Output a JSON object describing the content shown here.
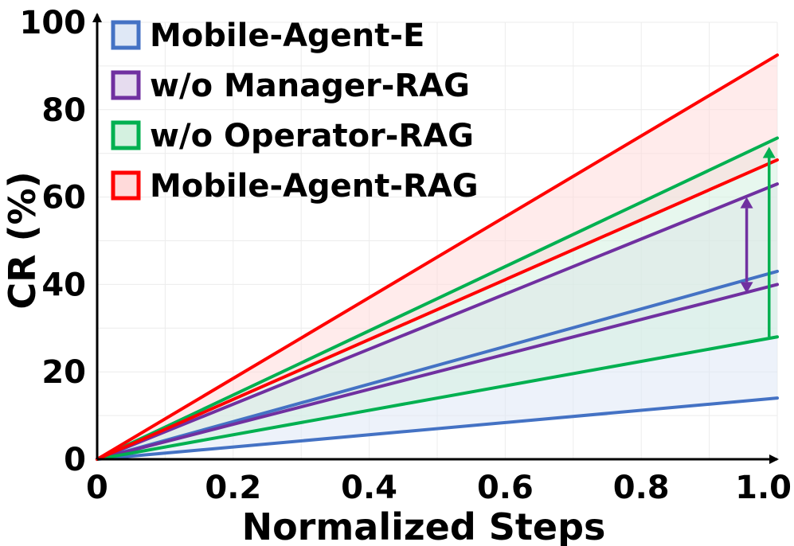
{
  "chart_data": {
    "type": "area",
    "title": "",
    "xlabel": "Normalized Steps",
    "ylabel": "CR (%)",
    "xlim": [
      0,
      1.0
    ],
    "ylim": [
      0,
      100
    ],
    "xticks": [
      {
        "value": 0,
        "label": "0"
      },
      {
        "value": 0.2,
        "label": "0.2"
      },
      {
        "value": 0.4,
        "label": "0.4"
      },
      {
        "value": 0.6,
        "label": "0.6"
      },
      {
        "value": 0.8,
        "label": "0.8"
      },
      {
        "value": 1.0,
        "label": "1.0"
      }
    ],
    "yticks": [
      {
        "value": 0,
        "label": "0"
      },
      {
        "value": 20,
        "label": "20"
      },
      {
        "value": 40,
        "label": "40"
      },
      {
        "value": 60,
        "label": "60"
      },
      {
        "value": 80,
        "label": "80"
      },
      {
        "value": 100,
        "label": "100"
      }
    ],
    "grid": true,
    "legend_position": "top-left",
    "series": [
      {
        "name": "Mobile-Agent-E",
        "color": "#4472C4",
        "fill": "#dfe8f6",
        "lower_end": 14,
        "upper_end": 43
      },
      {
        "name": "w/o Manager-RAG",
        "color": "#7030A0",
        "fill": "#e6dcef",
        "lower_end": 40,
        "upper_end": 63
      },
      {
        "name": "w/o Operator-RAG",
        "color": "#00B050",
        "fill": "#d4f1e0",
        "lower_end": 28,
        "upper_end": 73.5
      },
      {
        "name": "Mobile-Agent-RAG",
        "color": "#FF0000",
        "fill": "#ffdada",
        "lower_end": 68.5,
        "upper_end": 92.5
      }
    ],
    "annotations": [
      {
        "type": "arrow",
        "x": 0.955,
        "from": 38,
        "to": 60,
        "color": "#7030A0",
        "double_headed": true
      },
      {
        "type": "arrow",
        "x": 0.988,
        "from": 28,
        "to": 71.5,
        "color": "#00B050",
        "double_headed": false
      }
    ]
  }
}
